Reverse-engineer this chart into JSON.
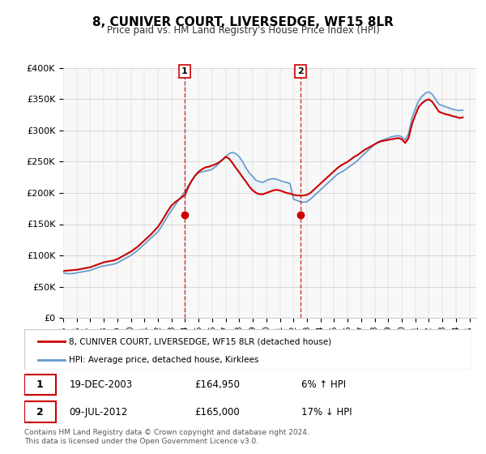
{
  "title": "8, CUNIVER COURT, LIVERSEDGE, WF15 8LR",
  "subtitle": "Price paid vs. HM Land Registry's House Price Index (HPI)",
  "ylabel_ticks": [
    "£0",
    "£50K",
    "£100K",
    "£150K",
    "£200K",
    "£250K",
    "£300K",
    "£350K",
    "£400K"
  ],
  "ylim": [
    0,
    400000
  ],
  "xlim_start": 1995.0,
  "xlim_end": 2025.5,
  "sale1_x": 2003.97,
  "sale1_y": 164950,
  "sale1_label": "1",
  "sale1_date": "19-DEC-2003",
  "sale1_price": "£164,950",
  "sale1_hpi": "6% ↑ HPI",
  "sale2_x": 2012.52,
  "sale2_y": 165000,
  "sale2_label": "2",
  "sale2_date": "09-JUL-2012",
  "sale2_price": "£165,000",
  "sale2_hpi": "17% ↓ HPI",
  "hpi_color": "#a8c8e8",
  "hpi_line_color": "#6699cc",
  "property_color": "#cc0000",
  "shading_color": "#d6e8f5",
  "marker_color": "#cc0000",
  "legend_property": "8, CUNIVER COURT, LIVERSEDGE, WF15 8LR (detached house)",
  "legend_hpi": "HPI: Average price, detached house, Kirklees",
  "footer": "Contains HM Land Registry data © Crown copyright and database right 2024.\nThis data is licensed under the Open Government Licence v3.0.",
  "background_color": "#ffffff",
  "plot_bg_color": "#f5f5f5",
  "hpi_years": [
    1995.0,
    1995.25,
    1995.5,
    1995.75,
    1996.0,
    1996.25,
    1996.5,
    1996.75,
    1997.0,
    1997.25,
    1997.5,
    1997.75,
    1998.0,
    1998.25,
    1998.5,
    1998.75,
    1999.0,
    1999.25,
    1999.5,
    1999.75,
    2000.0,
    2000.25,
    2000.5,
    2000.75,
    2001.0,
    2001.25,
    2001.5,
    2001.75,
    2002.0,
    2002.25,
    2002.5,
    2002.75,
    2003.0,
    2003.25,
    2003.5,
    2003.75,
    2004.0,
    2004.25,
    2004.5,
    2004.75,
    2005.0,
    2005.25,
    2005.5,
    2005.75,
    2006.0,
    2006.25,
    2006.5,
    2006.75,
    2007.0,
    2007.25,
    2007.5,
    2007.75,
    2008.0,
    2008.25,
    2008.5,
    2008.75,
    2009.0,
    2009.25,
    2009.5,
    2009.75,
    2010.0,
    2010.25,
    2010.5,
    2010.75,
    2011.0,
    2011.25,
    2011.5,
    2011.75,
    2012.0,
    2012.25,
    2012.5,
    2012.75,
    2013.0,
    2013.25,
    2013.5,
    2013.75,
    2014.0,
    2014.25,
    2014.5,
    2014.75,
    2015.0,
    2015.25,
    2015.5,
    2015.75,
    2016.0,
    2016.25,
    2016.5,
    2016.75,
    2017.0,
    2017.25,
    2017.5,
    2017.75,
    2018.0,
    2018.25,
    2018.5,
    2018.75,
    2019.0,
    2019.25,
    2019.5,
    2019.75,
    2020.0,
    2020.25,
    2020.5,
    2020.75,
    2021.0,
    2021.25,
    2021.5,
    2021.75,
    2022.0,
    2022.25,
    2022.5,
    2022.75,
    2023.0,
    2023.25,
    2023.5,
    2023.75,
    2024.0,
    2024.25,
    2024.5
  ],
  "hpi_values": [
    72000,
    71000,
    70500,
    71000,
    72000,
    73000,
    74000,
    75000,
    76000,
    78000,
    80000,
    82000,
    83000,
    84000,
    85000,
    86000,
    88000,
    91000,
    94000,
    97000,
    100000,
    104000,
    108000,
    113000,
    118000,
    123000,
    128000,
    133000,
    138000,
    146000,
    155000,
    164000,
    172000,
    180000,
    188000,
    195000,
    203000,
    212000,
    220000,
    228000,
    232000,
    234000,
    235000,
    236000,
    238000,
    242000,
    247000,
    253000,
    258000,
    263000,
    265000,
    263000,
    258000,
    250000,
    240000,
    232000,
    226000,
    220000,
    218000,
    217000,
    220000,
    222000,
    223000,
    222000,
    220000,
    218000,
    217000,
    215000,
    190000,
    188000,
    186000,
    185000,
    186000,
    190000,
    195000,
    200000,
    205000,
    210000,
    215000,
    220000,
    225000,
    230000,
    233000,
    236000,
    240000,
    244000,
    248000,
    252000,
    258000,
    263000,
    268000,
    273000,
    278000,
    282000,
    284000,
    286000,
    288000,
    290000,
    291000,
    292000,
    290000,
    285000,
    295000,
    320000,
    335000,
    348000,
    355000,
    360000,
    362000,
    358000,
    350000,
    342000,
    340000,
    338000,
    336000,
    334000,
    333000,
    332000,
    333000
  ],
  "prop_years": [
    1995.0,
    1995.25,
    1995.5,
    1995.75,
    1996.0,
    1996.25,
    1996.5,
    1996.75,
    1997.0,
    1997.25,
    1997.5,
    1997.75,
    1998.0,
    1998.25,
    1998.5,
    1998.75,
    1999.0,
    1999.25,
    1999.5,
    1999.75,
    2000.0,
    2000.25,
    2000.5,
    2000.75,
    2001.0,
    2001.25,
    2001.5,
    2001.75,
    2002.0,
    2002.25,
    2002.5,
    2002.75,
    2003.0,
    2003.25,
    2003.5,
    2003.75,
    2004.0,
    2004.25,
    2004.5,
    2004.75,
    2005.0,
    2005.25,
    2005.5,
    2005.75,
    2006.0,
    2006.25,
    2006.5,
    2006.75,
    2007.0,
    2007.25,
    2007.5,
    2007.75,
    2008.0,
    2008.25,
    2008.5,
    2008.75,
    2009.0,
    2009.25,
    2009.5,
    2009.75,
    2010.0,
    2010.25,
    2010.5,
    2010.75,
    2011.0,
    2011.25,
    2011.5,
    2011.75,
    2012.0,
    2012.25,
    2012.5,
    2012.75,
    2013.0,
    2013.25,
    2013.5,
    2013.75,
    2014.0,
    2014.25,
    2014.5,
    2014.75,
    2015.0,
    2015.25,
    2015.5,
    2015.75,
    2016.0,
    2016.25,
    2016.5,
    2016.75,
    2017.0,
    2017.25,
    2017.5,
    2017.75,
    2018.0,
    2018.25,
    2018.5,
    2018.75,
    2019.0,
    2019.25,
    2019.5,
    2019.75,
    2020.0,
    2020.25,
    2020.5,
    2020.75,
    2021.0,
    2021.25,
    2021.5,
    2021.75,
    2022.0,
    2022.25,
    2022.5,
    2022.75,
    2023.0,
    2023.25,
    2023.5,
    2023.75,
    2024.0,
    2024.25,
    2024.5
  ],
  "prop_values": [
    75000,
    75500,
    76000,
    76500,
    77000,
    78000,
    79000,
    80000,
    81000,
    83000,
    85000,
    87000,
    89000,
    90000,
    91000,
    92000,
    94000,
    97000,
    100000,
    103000,
    106000,
    110000,
    114000,
    119000,
    124000,
    129000,
    134000,
    140000,
    146000,
    154000,
    163000,
    172000,
    180000,
    185000,
    189000,
    193000,
    197000,
    210000,
    220000,
    228000,
    234000,
    238000,
    241000,
    242000,
    244000,
    246000,
    249000,
    253000,
    258000,
    255000,
    248000,
    240000,
    233000,
    225000,
    218000,
    210000,
    204000,
    200000,
    198000,
    198000,
    200000,
    202000,
    204000,
    205000,
    204000,
    202000,
    200000,
    199000,
    197000,
    196000,
    196000,
    196000,
    197000,
    200000,
    205000,
    210000,
    215000,
    220000,
    225000,
    230000,
    235000,
    240000,
    244000,
    247000,
    250000,
    254000,
    258000,
    261000,
    265000,
    269000,
    272000,
    275000,
    278000,
    281000,
    283000,
    284000,
    285000,
    286000,
    287000,
    288000,
    286000,
    280000,
    288000,
    310000,
    325000,
    338000,
    344000,
    348000,
    350000,
    346000,
    338000,
    330000,
    328000,
    326000,
    325000,
    323000,
    322000,
    320000,
    321000
  ]
}
